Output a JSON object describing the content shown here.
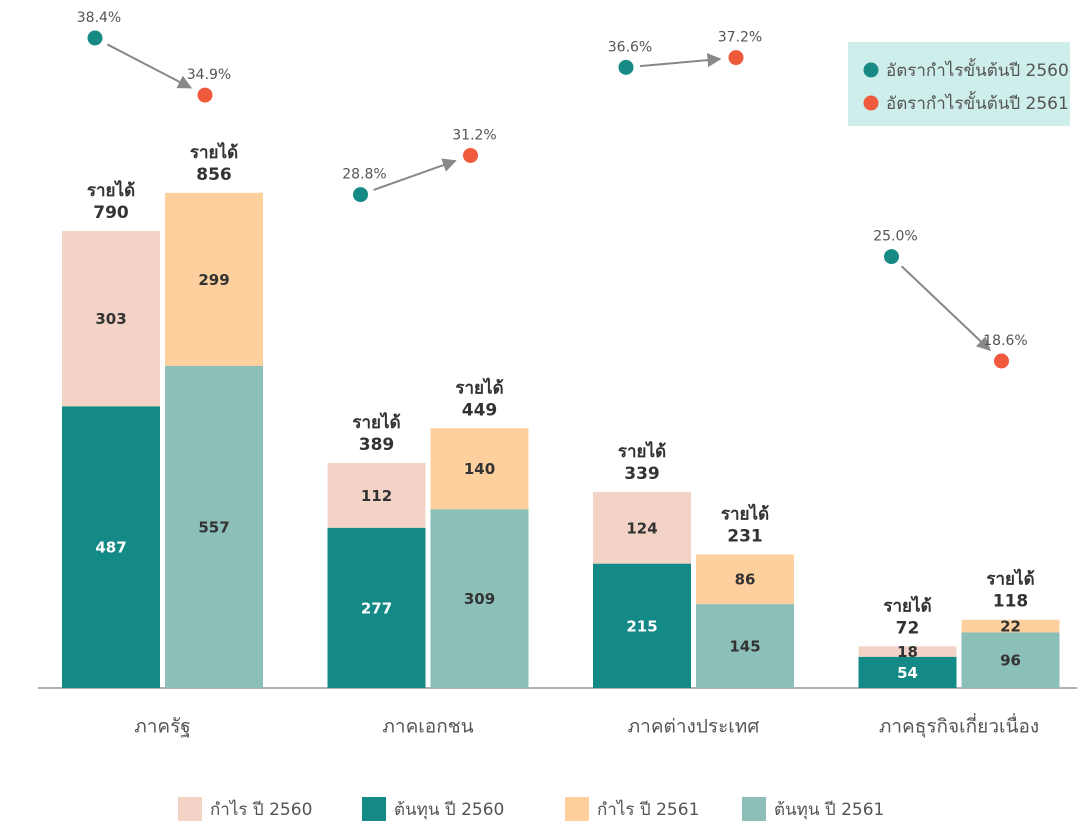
{
  "chart_data": {
    "type": "bar",
    "categories": [
      "ภาครัฐ",
      "ภาคเอกชน",
      "ภาคต่างประเทศ",
      "ภาคธุรกิจเกี่ยวเนื่อง"
    ],
    "ylim": [
      0,
      1000
    ],
    "total_label": "รายได้",
    "bar_groups": [
      {
        "series": [
          {
            "name": "กำไร ปี 2560",
            "color": "#f2d3c6",
            "values": [
              303,
              112,
              124,
              18
            ]
          },
          {
            "name": "ต้นทุน ปี 2560",
            "color": "#148a87",
            "values": [
              487,
              277,
              215,
              54
            ]
          }
        ],
        "totals": [
          790,
          389,
          339,
          72
        ]
      },
      {
        "series": [
          {
            "name": "กำไร ปี 2561",
            "color": "#fdd09e",
            "values": [
              299,
              140,
              86,
              22
            ]
          },
          {
            "name": "ต้นทุน ปี 2561",
            "color": "#8bbfb8",
            "values": [
              557,
              309,
              145,
              96
            ]
          }
        ],
        "totals": [
          856,
          449,
          231,
          118
        ]
      }
    ],
    "rates": {
      "type": "scatter",
      "y2lim": [
        15,
        40
      ],
      "series": [
        {
          "name": "อัตรากำไรขั้นต้นปี 2560",
          "color": "#178a86",
          "values": [
            38.4,
            28.8,
            36.6,
            25.0
          ],
          "value_labels": [
            "38.4%",
            "28.8%",
            "36.6%",
            "25.0%"
          ]
        },
        {
          "name": "อัตรากำไรขั้นต้นปี 2561",
          "color": "#f05a3c",
          "values": [
            34.9,
            31.2,
            37.2,
            18.6
          ],
          "value_labels": [
            "34.9%",
            "31.2%",
            "37.2%",
            "18.6%"
          ]
        }
      ]
    }
  }
}
